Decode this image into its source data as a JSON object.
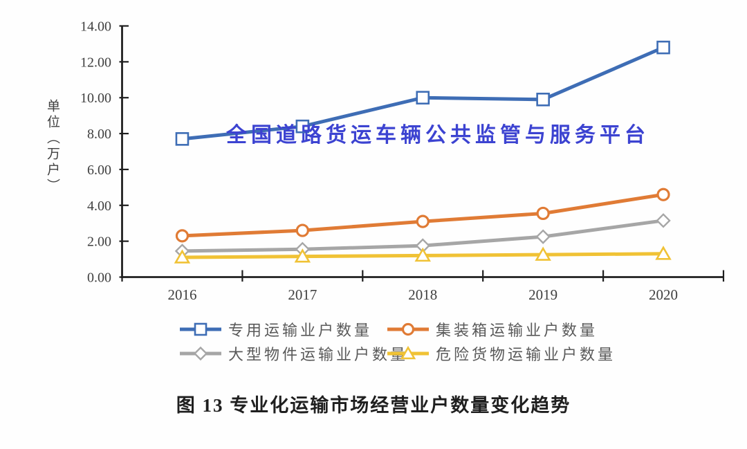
{
  "watermark": {
    "text": "全国道路货运车辆公共监管与服务平台",
    "color": "#3c43d1"
  },
  "caption": {
    "text": "图 13 专业化运输市场经营业户数量变化趋势"
  },
  "chart_data": {
    "type": "line",
    "title": "",
    "y_axis_label": "单位（万户）",
    "x": [
      "2016",
      "2017",
      "2018",
      "2019",
      "2020"
    ],
    "ylim": [
      0,
      14
    ],
    "y_tick_step": 2,
    "y_tick_labels": [
      "0.00",
      "2.00",
      "4.00",
      "6.00",
      "8.00",
      "10.00",
      "12.00",
      "14.00"
    ],
    "grid": false,
    "legend_position": "bottom",
    "axis_color": "#1f1f1f",
    "tick_label_color": "#3f3f3f",
    "series": [
      {
        "name": "专用运输业户数量",
        "color": "#3e6db5",
        "marker": "square",
        "values": [
          7.7,
          8.4,
          10.0,
          9.9,
          12.8
        ]
      },
      {
        "name": "集装箱运输业户数量",
        "color": "#e07b35",
        "marker": "circle",
        "values": [
          2.3,
          2.6,
          3.1,
          3.55,
          4.6
        ]
      },
      {
        "name": "大型物件运输业户数量",
        "color": "#a6a6a6",
        "marker": "diamond",
        "values": [
          1.45,
          1.55,
          1.75,
          2.25,
          3.15
        ]
      },
      {
        "name": "危险货物运输业户数量",
        "color": "#f0c235",
        "marker": "triangle",
        "values": [
          1.1,
          1.15,
          1.2,
          1.25,
          1.3
        ]
      }
    ]
  }
}
